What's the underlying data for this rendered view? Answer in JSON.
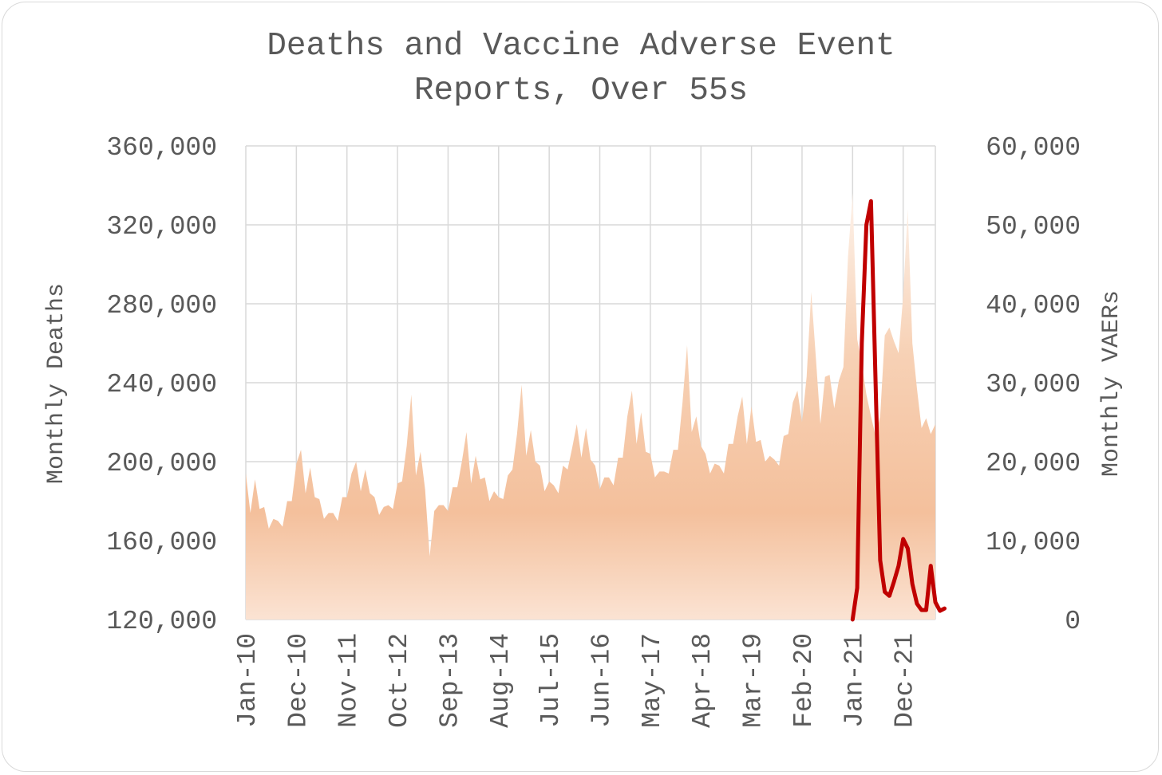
{
  "chart_data": {
    "type": "area+line",
    "title_line1": "Deaths and Vaccine Adverse Event",
    "title_line2": "Reports, Over 55s",
    "ylabel_left": "Monthly Deaths",
    "ylabel_right": "Monthly VAERs",
    "ylim_left": [
      120000,
      360000
    ],
    "ylim_right": [
      0,
      60000
    ],
    "yticks_left": [
      "120,000",
      "160,000",
      "200,000",
      "240,000",
      "280,000",
      "320,000",
      "360,000"
    ],
    "yticks_right": [
      "0",
      "10,000",
      "20,000",
      "30,000",
      "40,000",
      "50,000",
      "60,000"
    ],
    "xticks": [
      "Jan-10",
      "Dec-10",
      "Nov-11",
      "Oct-12",
      "Sep-13",
      "Aug-14",
      "Jul-15",
      "Jun-16",
      "May-17",
      "Apr-18",
      "Mar-19",
      "Feb-20",
      "Jan-21",
      "Dec-21"
    ],
    "x_start": "Jan-10",
    "months": 151,
    "grid": true,
    "colors": {
      "area_light": "#fbe3d3",
      "area_mid": "#f4c09c",
      "line": "#c00000",
      "grid": "#d9d9d9",
      "text": "#595959"
    },
    "series": [
      {
        "name": "Monthly Deaths",
        "axis": "left",
        "kind": "area",
        "values": [
          194000,
          174000,
          191000,
          176000,
          177000,
          166000,
          171000,
          170000,
          167000,
          180000,
          180000,
          199000,
          206000,
          184000,
          197000,
          182000,
          181000,
          171000,
          174000,
          174000,
          170000,
          182000,
          182000,
          194000,
          200000,
          185000,
          196000,
          184000,
          182000,
          173000,
          177000,
          178000,
          176000,
          189000,
          190000,
          208000,
          234000,
          193000,
          205000,
          186000,
          152000,
          175000,
          178000,
          178000,
          175000,
          187000,
          187000,
          200000,
          215000,
          189000,
          203000,
          191000,
          192000,
          180000,
          185000,
          182000,
          181000,
          193000,
          196000,
          214000,
          239000,
          203000,
          216000,
          200000,
          198000,
          185000,
          190000,
          188000,
          184000,
          198000,
          196000,
          207000,
          219000,
          202000,
          217000,
          201000,
          198000,
          186000,
          192000,
          192000,
          188000,
          202000,
          202000,
          223000,
          236000,
          209000,
          225000,
          205000,
          204000,
          192000,
          195000,
          195000,
          194000,
          206000,
          206000,
          230000,
          259000,
          215000,
          223000,
          208000,
          204000,
          194000,
          199000,
          198000,
          194000,
          209000,
          209000,
          223000,
          233000,
          209000,
          228000,
          210000,
          211000,
          200000,
          203000,
          201000,
          198000,
          213000,
          214000,
          230000,
          236000,
          220000,
          243000,
          286000,
          253000,
          219000,
          243000,
          244000,
          227000,
          241000,
          248000,
          304000,
          336000,
          262000,
          250000,
          234000,
          223000,
          213000,
          223000,
          264000,
          268000,
          261000,
          255000,
          284000,
          328000,
          260000,
          237000,
          217000,
          222000,
          214000,
          219000
        ]
      },
      {
        "name": "Monthly VAERs",
        "axis": "right",
        "kind": "line",
        "start_index": 132,
        "values": [
          0,
          4000,
          35000,
          50000,
          53000,
          30000,
          7500,
          3500,
          3000,
          4800,
          6800,
          10200,
          9000,
          4500,
          2000,
          1200,
          1200,
          6800,
          2200,
          1100,
          1400
        ]
      }
    ]
  }
}
